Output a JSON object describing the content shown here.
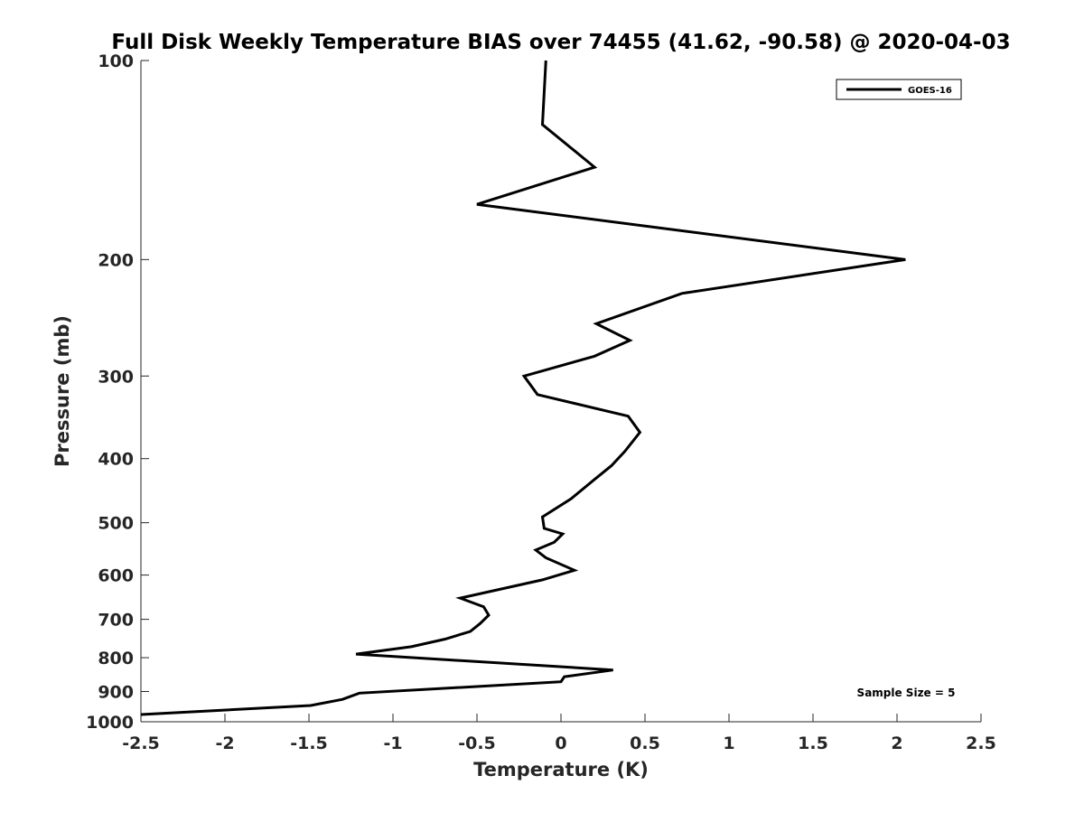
{
  "chart_data": {
    "type": "line",
    "title": "Full Disk Weekly Temperature BIAS over 74455 (41.62, -90.58) @ 2020-04-03",
    "xlabel": "Temperature (K)",
    "ylabel": "Pressure (mb)",
    "xlim": [
      -2.5,
      2.5
    ],
    "ylim": [
      100,
      1000
    ],
    "y_scale": "log",
    "y_reversed": true,
    "grid": false,
    "x_ticks": [
      -2.5,
      -2,
      -1.5,
      -1,
      -0.5,
      0,
      0.5,
      1,
      1.5,
      2,
      2.5
    ],
    "x_tick_labels": [
      "-2.5",
      "-2",
      "-1.5",
      "-1",
      "-0.5",
      "0",
      "0.5",
      "1",
      "1.5",
      "2",
      "2.5"
    ],
    "y_ticks": [
      100,
      200,
      300,
      400,
      500,
      600,
      700,
      800,
      900,
      1000
    ],
    "y_tick_labels": [
      "100",
      "200",
      "300",
      "400",
      "500",
      "600",
      "700",
      "800",
      "900",
      "1000"
    ],
    "legend_position": "top-right",
    "series": [
      {
        "name": "GOES-16",
        "color": "#000000",
        "x": [
          -0.09,
          -0.11,
          0.2,
          -0.5,
          2.05,
          0.72,
          0.21,
          0.41,
          0.2,
          -0.22,
          -0.14,
          0.4,
          0.47,
          0.38,
          0.3,
          0.2,
          0.06,
          -0.11,
          -0.1,
          0.01,
          -0.04,
          -0.15,
          -0.09,
          0.08,
          -0.11,
          -0.6,
          -0.46,
          -0.43,
          -0.48,
          -0.54,
          -0.69,
          -0.89,
          -1.22,
          0.31,
          0.02,
          0.0,
          -1.2,
          -1.3,
          -1.49,
          -2.5
        ],
        "y": [
          100,
          125,
          145,
          165,
          200,
          225,
          250,
          265,
          280,
          300,
          320,
          345,
          365,
          390,
          410,
          430,
          460,
          490,
          510,
          520,
          535,
          550,
          565,
          590,
          610,
          650,
          670,
          690,
          710,
          730,
          750,
          770,
          790,
          835,
          855,
          870,
          905,
          925,
          945,
          975
        ]
      }
    ],
    "annotations": [
      "Sample Size = 5"
    ]
  }
}
